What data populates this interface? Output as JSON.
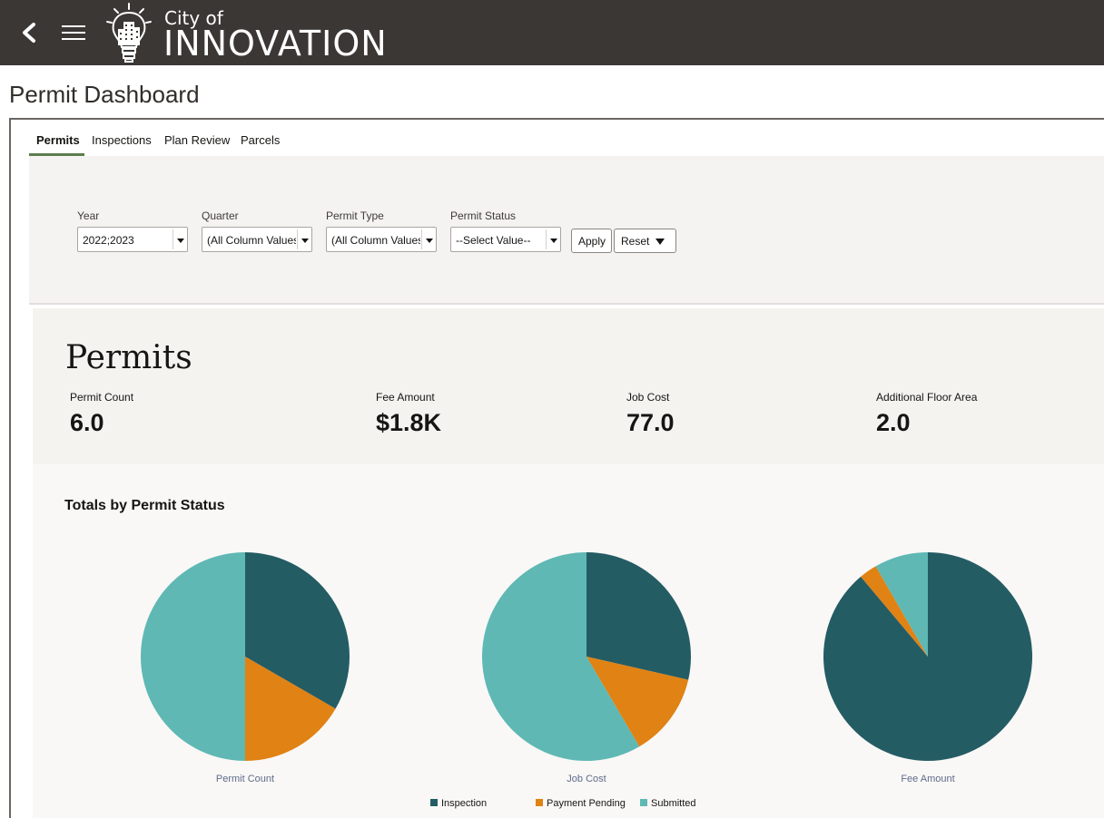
{
  "header": {
    "brand_small": "City of",
    "brand_big": "INNOVATION"
  },
  "page": {
    "title": "Permit Dashboard"
  },
  "tabs": [
    {
      "label": "Permits",
      "active": true
    },
    {
      "label": "Inspections",
      "active": false
    },
    {
      "label": "Plan Review",
      "active": false
    },
    {
      "label": "Parcels",
      "active": false
    }
  ],
  "filters": {
    "year": {
      "label": "Year",
      "value": "2022;2023"
    },
    "quarter": {
      "label": "Quarter",
      "value": "(All Column Values)"
    },
    "permit_type": {
      "label": "Permit Type",
      "value": "(All Column Values)"
    },
    "permit_status": {
      "label": "Permit Status",
      "value": "--Select Value--"
    },
    "apply_label": "Apply",
    "reset_label": "Reset"
  },
  "kpis": {
    "title": "Permits",
    "items": [
      {
        "label": "Permit Count",
        "value": "6.0"
      },
      {
        "label": "Fee Amount",
        "value": "$1.8K"
      },
      {
        "label": "Job Cost",
        "value": "77.0"
      },
      {
        "label": "Additional Floor Area",
        "value": "2.0"
      }
    ]
  },
  "colors": {
    "inspection": "#245c64",
    "payment_pending": "#e08214",
    "submitted": "#5fb8b4",
    "accent_tab": "#5d7c4c"
  },
  "chart_data": {
    "title": "Totals by Permit Status",
    "type": "pie",
    "legend_position": "bottom",
    "legend": [
      "Inspection",
      "Payment Pending",
      "Submitted"
    ],
    "pies": [
      {
        "name": "Permit Count",
        "slices": [
          {
            "label": "Inspection",
            "value": 2
          },
          {
            "label": "Payment Pending",
            "value": 1
          },
          {
            "label": "Submitted",
            "value": 3
          }
        ]
      },
      {
        "name": "Job Cost",
        "slices": [
          {
            "label": "Inspection",
            "value": 22
          },
          {
            "label": "Payment Pending",
            "value": 10
          },
          {
            "label": "Submitted",
            "value": 45
          }
        ]
      },
      {
        "name": "Fee Amount",
        "slices": [
          {
            "label": "Inspection",
            "value": 1600
          },
          {
            "label": "Payment Pending",
            "value": 50
          },
          {
            "label": "Submitted",
            "value": 150
          }
        ]
      }
    ]
  }
}
